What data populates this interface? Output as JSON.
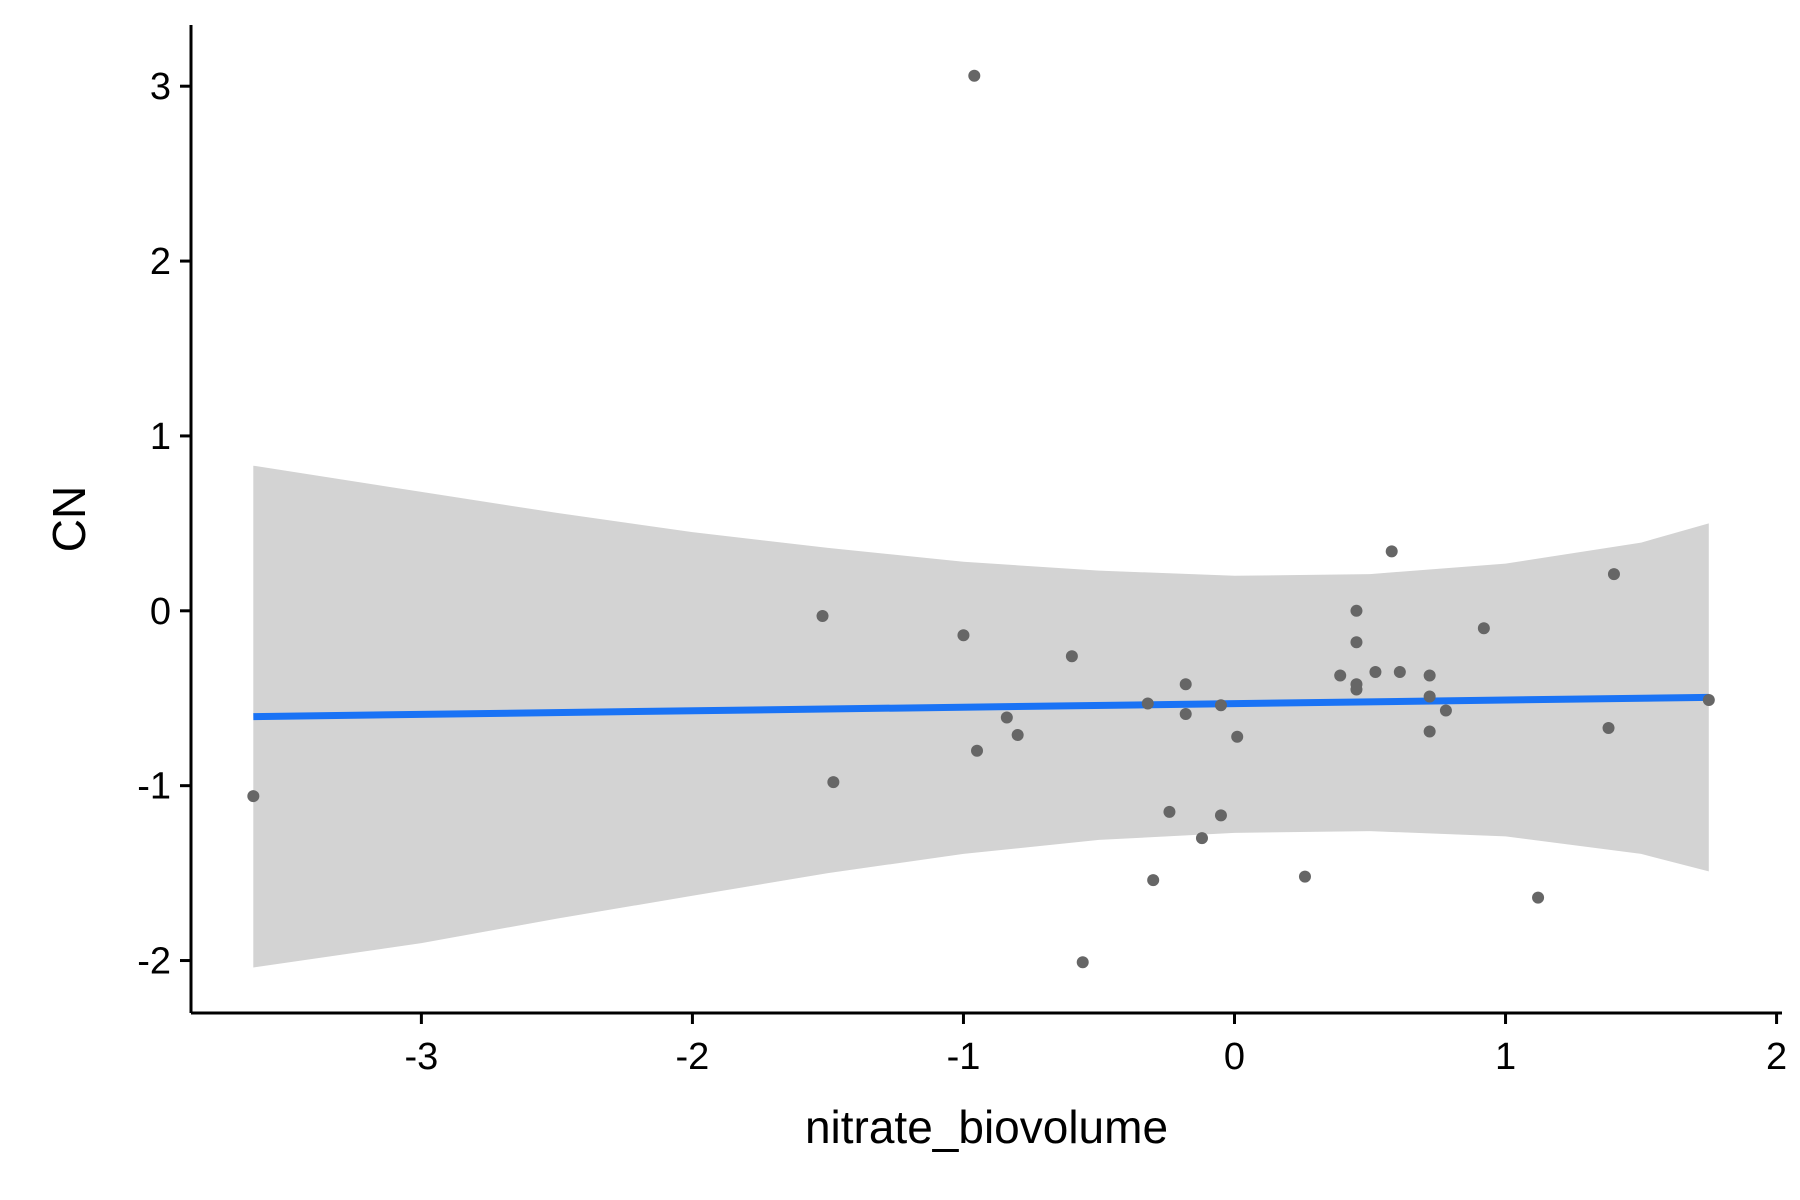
{
  "chart_data": {
    "type": "scatter",
    "xlabel": "nitrate_biovolume",
    "ylabel": "CN",
    "xlim": [
      -3.85,
      2.02
    ],
    "ylim": [
      -2.3,
      3.35
    ],
    "x_ticks": [
      -3,
      -2,
      -1,
      0,
      1,
      2
    ],
    "x_tick_labels": [
      "-3",
      "-2",
      "-1",
      "0",
      "1",
      "2"
    ],
    "y_ticks": [
      -2,
      -1,
      0,
      1,
      2,
      3
    ],
    "y_tick_labels": [
      "-2",
      "-1",
      "0",
      "1",
      "2",
      "3"
    ],
    "grid": false,
    "points": [
      {
        "x": -3.62,
        "y": -1.06
      },
      {
        "x": -1.52,
        "y": -0.03
      },
      {
        "x": -1.48,
        "y": -0.98
      },
      {
        "x": -1.0,
        "y": -0.14
      },
      {
        "x": -0.96,
        "y": 3.06
      },
      {
        "x": -0.95,
        "y": -0.8
      },
      {
        "x": -0.84,
        "y": -0.61
      },
      {
        "x": -0.8,
        "y": -0.71
      },
      {
        "x": -0.6,
        "y": -0.26
      },
      {
        "x": -0.56,
        "y": -2.01
      },
      {
        "x": -0.32,
        "y": -0.53
      },
      {
        "x": -0.3,
        "y": -1.54
      },
      {
        "x": -0.24,
        "y": -1.15
      },
      {
        "x": -0.18,
        "y": -0.42
      },
      {
        "x": -0.18,
        "y": -0.59
      },
      {
        "x": -0.12,
        "y": -1.3
      },
      {
        "x": -0.05,
        "y": -0.54
      },
      {
        "x": -0.05,
        "y": -1.17
      },
      {
        "x": 0.01,
        "y": -0.72
      },
      {
        "x": 0.26,
        "y": -1.52
      },
      {
        "x": 0.39,
        "y": -0.37
      },
      {
        "x": 0.45,
        "y": 0.0
      },
      {
        "x": 0.45,
        "y": -0.18
      },
      {
        "x": 0.45,
        "y": -0.42
      },
      {
        "x": 0.45,
        "y": -0.45
      },
      {
        "x": 0.52,
        "y": -0.35
      },
      {
        "x": 0.58,
        "y": 0.34
      },
      {
        "x": 0.61,
        "y": -0.35
      },
      {
        "x": 0.72,
        "y": -0.37
      },
      {
        "x": 0.72,
        "y": -0.49
      },
      {
        "x": 0.72,
        "y": -0.69
      },
      {
        "x": 0.78,
        "y": -0.57
      },
      {
        "x": 0.92,
        "y": -0.1
      },
      {
        "x": 1.12,
        "y": -1.64
      },
      {
        "x": 1.38,
        "y": -0.67
      },
      {
        "x": 1.4,
        "y": 0.21
      },
      {
        "x": 1.75,
        "y": -0.51
      }
    ],
    "fit_line": {
      "x": [
        -3.62,
        1.75
      ],
      "y": [
        -0.605,
        -0.495
      ]
    },
    "confidence_band": {
      "x": [
        -3.62,
        -3.0,
        -2.5,
        -2.0,
        -1.5,
        -1.0,
        -0.5,
        0.0,
        0.5,
        1.0,
        1.5,
        1.75
      ],
      "upper": [
        0.83,
        0.68,
        0.56,
        0.45,
        0.36,
        0.28,
        0.23,
        0.2,
        0.21,
        0.27,
        0.39,
        0.5
      ],
      "lower": [
        -2.04,
        -1.9,
        -1.76,
        -1.63,
        -1.5,
        -1.39,
        -1.31,
        -1.27,
        -1.26,
        -1.29,
        -1.39,
        -1.49
      ]
    },
    "colors": {
      "points": "#666666",
      "fit_line": "#1a73f5",
      "band": "#d3d3d3",
      "axis": "#000000"
    }
  }
}
